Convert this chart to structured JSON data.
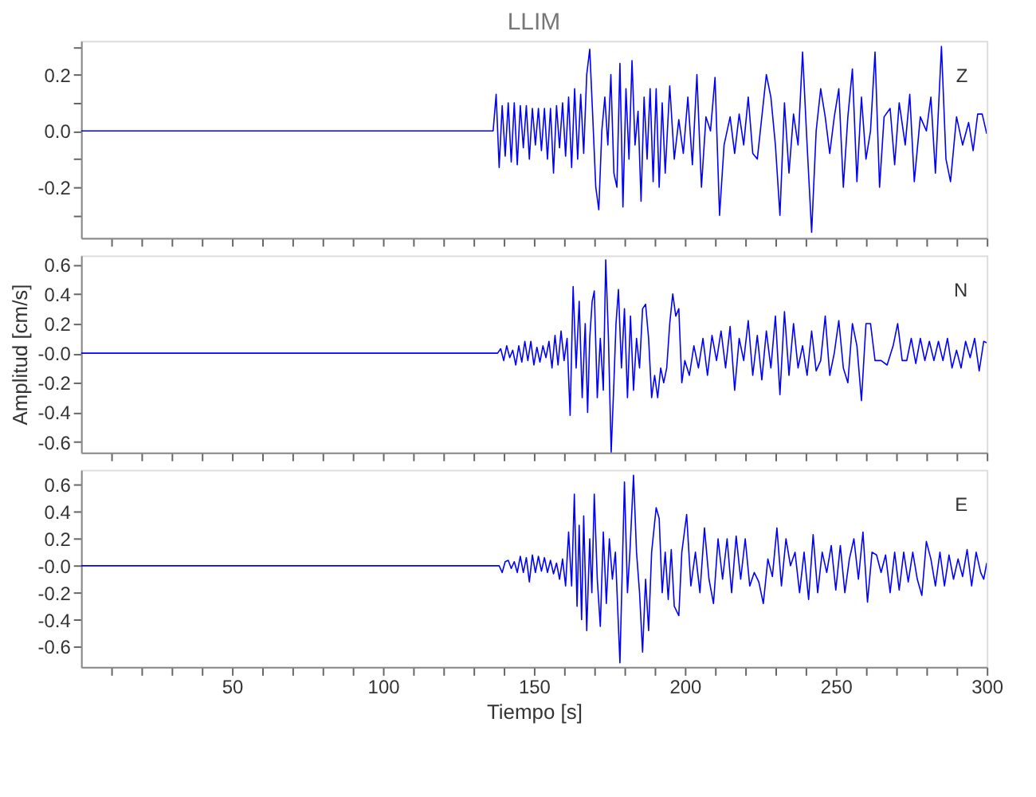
{
  "chart_data": [
    {
      "type": "line",
      "title": "LLIM",
      "annotations": [
        "Z"
      ],
      "color": "#0000ff",
      "tick_labels": "y",
      "grid": false,
      "xlim": [
        0,
        300
      ],
      "xticks": [
        {
          "value": 10,
          "label": null
        },
        {
          "value": 20,
          "label": null
        },
        {
          "value": 30,
          "label": null
        },
        {
          "value": 40,
          "label": null
        },
        50,
        {
          "value": 60,
          "label": null
        },
        {
          "value": 70,
          "label": null
        },
        {
          "value": 80,
          "label": null
        },
        {
          "value": 90,
          "label": null
        },
        100,
        {
          "value": 110,
          "label": null
        },
        {
          "value": 120,
          "label": null
        },
        {
          "value": 130,
          "label": null
        },
        {
          "value": 140,
          "label": null
        },
        150,
        {
          "value": 160,
          "label": null
        },
        {
          "value": 170,
          "label": null
        },
        {
          "value": 180,
          "label": null
        },
        {
          "value": 190,
          "label": null
        },
        200,
        {
          "value": 210,
          "label": null
        },
        {
          "value": 220,
          "label": null
        },
        {
          "value": 230,
          "label": null
        },
        {
          "value": 240,
          "label": null
        },
        250,
        {
          "value": 260,
          "label": null
        },
        {
          "value": 270,
          "label": null
        },
        {
          "value": 280,
          "label": null
        },
        {
          "value": 290,
          "label": null
        },
        300
      ],
      "ylim": [
        -0.38,
        0.32
      ],
      "yticks": [
        {
          "value": -0.3,
          "label": null
        },
        -0.2,
        {
          "value": -0.1,
          "label": null
        },
        {
          "value": 0,
          "label": "0.0"
        },
        {
          "value": 0.1,
          "label": null
        },
        0.2,
        {
          "value": 0.3,
          "label": null
        }
      ],
      "x": [
        0,
        60,
        136.5,
        137.5,
        138.5,
        139.5,
        140.5,
        141.5,
        142.5,
        143.5,
        144.5,
        145.5,
        146.5,
        147.5,
        148.5,
        149.5,
        150.5,
        151.5,
        152.5,
        153.5,
        154.5,
        155.5,
        156.5,
        157.5,
        158.5,
        159.5,
        160.5,
        161.5,
        162.5,
        163.5,
        164.5,
        165.5,
        166.5,
        167.5,
        168.5,
        169.5,
        170.5,
        171.5,
        172.5,
        173.5,
        174.5,
        175.5,
        176.5,
        177.5,
        178.5,
        179.5,
        180.5,
        181.5,
        182.5,
        183.5,
        184.5,
        185.5,
        186.5,
        187.5,
        188.5,
        189.5,
        190.5,
        191.5,
        192.5,
        193.5,
        195,
        196.5,
        198,
        199.5,
        201,
        202.5,
        204,
        205.5,
        207,
        208.5,
        210,
        211.5,
        213,
        215,
        216.5,
        218,
        219.5,
        221,
        222.5,
        224,
        225.5,
        227,
        228.5,
        230,
        231.5,
        233,
        234.5,
        236,
        237.5,
        239,
        240.5,
        242,
        243.5,
        245,
        246.5,
        248,
        249.5,
        251,
        252.5,
        254,
        255.5,
        257,
        258.5,
        260,
        261.5,
        263,
        264.5,
        266,
        268,
        269.5,
        271,
        273,
        274.5,
        276,
        278,
        280,
        281.5,
        283,
        285,
        286.5,
        288,
        290,
        292,
        294,
        295.5,
        297,
        298.5,
        300
      ],
      "values": [
        0,
        0,
        0,
        0.13,
        -0.13,
        0.09,
        -0.09,
        0.1,
        -0.11,
        0.1,
        -0.12,
        0.09,
        -0.06,
        0.09,
        -0.1,
        0.08,
        -0.05,
        0.08,
        -0.07,
        0.08,
        -0.1,
        0.08,
        -0.15,
        0.09,
        -0.06,
        0.1,
        -0.09,
        0.12,
        -0.13,
        0.15,
        -0.1,
        0.13,
        -0.08,
        0.2,
        0.29,
        0.05,
        -0.2,
        -0.28,
        0,
        0.12,
        -0.05,
        0.2,
        -0.15,
        -0.2,
        0.24,
        -0.27,
        0.15,
        -0.1,
        0.25,
        -0.05,
        0.07,
        -0.25,
        0.12,
        -0.1,
        0.15,
        -0.18,
        0.15,
        -0.2,
        0.1,
        -0.15,
        0.16,
        -0.1,
        0.04,
        -0.08,
        0.12,
        -0.12,
        0.2,
        -0.2,
        0.05,
        0,
        0.19,
        -0.3,
        -0.05,
        0.05,
        -0.08,
        0.06,
        -0.05,
        0.12,
        -0.08,
        -0.1,
        0.05,
        0.2,
        0.12,
        -0.05,
        -0.3,
        0.1,
        -0.15,
        0.06,
        -0.05,
        0.28,
        -0.05,
        -0.36,
        0,
        0.15,
        0.05,
        -0.08,
        0.05,
        0.15,
        -0.2,
        0.05,
        0.22,
        -0.18,
        0.12,
        -0.1,
        0,
        0.28,
        -0.2,
        0.05,
        0.08,
        -0.12,
        0.1,
        -0.05,
        0.13,
        -0.18,
        0.05,
        0,
        0.12,
        -0.15,
        0.3,
        -0.1,
        -0.18,
        0.05,
        -0.05,
        0.03,
        -0.07,
        0.06,
        0.06,
        -0.01
      ]
    },
    {
      "type": "line",
      "ylabel": "Amplitud [cm/s]",
      "annotations": [
        "N"
      ],
      "color": "#0000ff",
      "tick_labels": "y",
      "grid": false,
      "xlim": [
        0,
        300
      ],
      "xticks": [
        {
          "value": 10,
          "label": null
        },
        {
          "value": 20,
          "label": null
        },
        {
          "value": 30,
          "label": null
        },
        {
          "value": 40,
          "label": null
        },
        50,
        {
          "value": 60,
          "label": null
        },
        {
          "value": 70,
          "label": null
        },
        {
          "value": 80,
          "label": null
        },
        {
          "value": 90,
          "label": null
        },
        100,
        {
          "value": 110,
          "label": null
        },
        {
          "value": 120,
          "label": null
        },
        {
          "value": 130,
          "label": null
        },
        {
          "value": 140,
          "label": null
        },
        150,
        {
          "value": 160,
          "label": null
        },
        {
          "value": 170,
          "label": null
        },
        {
          "value": 180,
          "label": null
        },
        {
          "value": 190,
          "label": null
        },
        200,
        {
          "value": 210,
          "label": null
        },
        {
          "value": 220,
          "label": null
        },
        {
          "value": 230,
          "label": null
        },
        {
          "value": 240,
          "label": null
        },
        250,
        {
          "value": 260,
          "label": null
        },
        {
          "value": 270,
          "label": null
        },
        {
          "value": 280,
          "label": null
        },
        {
          "value": 290,
          "label": null
        },
        300
      ],
      "ylim": [
        -0.67,
        0.66
      ],
      "yticks": [
        -0.6,
        -0.4,
        -0.2,
        {
          "value": 0,
          "label": "-0.0"
        },
        0.2,
        0.4,
        0.6
      ],
      "x": [
        0,
        60,
        138,
        139,
        140,
        141,
        142,
        143,
        144,
        145,
        146,
        147,
        148,
        149,
        150,
        151,
        152,
        153,
        154,
        155,
        156,
        157,
        158,
        159,
        160,
        161,
        162,
        163,
        164,
        165,
        166,
        167,
        167.8,
        168.5,
        169.3,
        170,
        171,
        172,
        173,
        173.8,
        174.7,
        175.6,
        176.5,
        177.2,
        178,
        179,
        180,
        181,
        182,
        183,
        184,
        185,
        186,
        187,
        188,
        189,
        190,
        191,
        192,
        193,
        194,
        195,
        196,
        197,
        198,
        199,
        200,
        201.5,
        203,
        204.5,
        206,
        207.5,
        209,
        210.5,
        212,
        213.5,
        215,
        216.5,
        218,
        219.5,
        221,
        222.5,
        224,
        225.5,
        227,
        228.5,
        230,
        231.5,
        233,
        234.5,
        236,
        237.5,
        239,
        240.5,
        242,
        243.5,
        245,
        246.5,
        248,
        249.5,
        251,
        252.5,
        254,
        255.5,
        257,
        258.5,
        260,
        261.5,
        263,
        265,
        267,
        269,
        270.5,
        272,
        273.5,
        275,
        276.5,
        278,
        279.5,
        281,
        282.5,
        284,
        285.5,
        287,
        288.5,
        290,
        291.5,
        293,
        294.5,
        296,
        297.5,
        299,
        300
      ],
      "values": [
        0,
        0,
        0,
        0.03,
        -0.05,
        0.05,
        -0.03,
        0.02,
        -0.08,
        0.05,
        -0.06,
        0.08,
        -0.05,
        0.08,
        -0.08,
        0.04,
        -0.06,
        0.05,
        -0.03,
        0.08,
        -0.1,
        0.12,
        -0.08,
        0.15,
        -0.05,
        0.1,
        -0.42,
        0.45,
        -0.1,
        0.35,
        -0.3,
        0.2,
        -0.4,
        0.1,
        0.35,
        0.42,
        -0.3,
        0.1,
        -0.25,
        0.63,
        0.1,
        -0.67,
        -0.2,
        0.2,
        0.43,
        -0.1,
        0.3,
        -0.3,
        0.25,
        -0.25,
        0.1,
        -0.1,
        0.3,
        0.33,
        0.1,
        -0.3,
        -0.15,
        -0.3,
        -0.1,
        -0.2,
        -0.1,
        0.2,
        0.4,
        0.25,
        0.3,
        -0.2,
        -0.05,
        -0.15,
        0.05,
        -0.1,
        0.1,
        -0.15,
        0.12,
        -0.05,
        0.15,
        -0.1,
        0.18,
        -0.25,
        0.1,
        -0.05,
        0.22,
        -0.15,
        0.12,
        -0.18,
        0.15,
        -0.1,
        0.25,
        -0.28,
        0.28,
        -0.15,
        0.2,
        -0.1,
        0.05,
        -0.15,
        0.15,
        -0.12,
        -0.05,
        0.25,
        -0.15,
        0,
        0.22,
        -0.1,
        -0.2,
        0.2,
        0.05,
        -0.32,
        0.2,
        0.2,
        -0.05,
        -0.05,
        -0.08,
        0.05,
        0.2,
        -0.05,
        -0.05,
        0.1,
        -0.07,
        0.1,
        -0.05,
        0.08,
        -0.05,
        0.08,
        -0.05,
        0.1,
        -0.1,
        0.02,
        -0.1,
        0.08,
        -0.03,
        0.1,
        -0.12,
        0.08,
        0.07
      ]
    },
    {
      "type": "line",
      "xlabel": "Tiempo [s]",
      "annotations": [
        "E"
      ],
      "color": "#0000ff",
      "grid": false,
      "xlim": [
        0,
        300
      ],
      "xticks": [
        {
          "value": 10,
          "label": null
        },
        {
          "value": 20,
          "label": null
        },
        {
          "value": 30,
          "label": null
        },
        {
          "value": 40,
          "label": null
        },
        50,
        {
          "value": 60,
          "label": null
        },
        {
          "value": 70,
          "label": null
        },
        {
          "value": 80,
          "label": null
        },
        {
          "value": 90,
          "label": null
        },
        100,
        {
          "value": 110,
          "label": null
        },
        {
          "value": 120,
          "label": null
        },
        {
          "value": 130,
          "label": null
        },
        {
          "value": 140,
          "label": null
        },
        150,
        {
          "value": 160,
          "label": null
        },
        {
          "value": 170,
          "label": null
        },
        {
          "value": 180,
          "label": null
        },
        {
          "value": 190,
          "label": null
        },
        200,
        {
          "value": 210,
          "label": null
        },
        {
          "value": 220,
          "label": null
        },
        {
          "value": 230,
          "label": null
        },
        {
          "value": 240,
          "label": null
        },
        250,
        {
          "value": 260,
          "label": null
        },
        {
          "value": 270,
          "label": null
        },
        {
          "value": 280,
          "label": null
        },
        {
          "value": 290,
          "label": null
        },
        300
      ],
      "ylim": [
        -0.75,
        0.71
      ],
      "yticks": [
        -0.6,
        -0.4,
        -0.2,
        {
          "value": 0,
          "label": "-0.0"
        },
        0.2,
        0.4,
        0.6
      ],
      "x": [
        0,
        60,
        138.5,
        139.5,
        140.5,
        141.5,
        142.5,
        143.5,
        144.5,
        145.5,
        146.5,
        147.5,
        148.5,
        149.5,
        150.5,
        151.5,
        152.5,
        153.5,
        154.5,
        155.5,
        156.5,
        157.5,
        158.5,
        159.5,
        160.5,
        161.5,
        162.5,
        163.4,
        164.3,
        165,
        165.8,
        166.5,
        167.5,
        168.5,
        169.2,
        170,
        171,
        172,
        173,
        174,
        175,
        176,
        177,
        178.5,
        180,
        181,
        181.8,
        183,
        184,
        185,
        186,
        187,
        188,
        189,
        190.5,
        191.5,
        192.5,
        193.5,
        194.5,
        195.5,
        196.5,
        198,
        199,
        200.6,
        202,
        203.5,
        205,
        206.5,
        208,
        209.5,
        211,
        212.5,
        214,
        215.5,
        217,
        218.5,
        220,
        221.5,
        223,
        224.5,
        226,
        227.5,
        229,
        230.5,
        232,
        233.5,
        235,
        236.5,
        238,
        239.5,
        241,
        242.5,
        244,
        245.5,
        247,
        248.5,
        250,
        251.5,
        253,
        254.5,
        256,
        257.5,
        259,
        260.5,
        262,
        263.5,
        265,
        266.5,
        268,
        269.5,
        271,
        272.5,
        274,
        275.5,
        277,
        278.5,
        280,
        281.5,
        283,
        284.5,
        286,
        287.5,
        289,
        290.5,
        292,
        293.5,
        295,
        296.5,
        298,
        299,
        300
      ],
      "values": [
        0,
        0,
        0,
        -0.05,
        0.03,
        0.04,
        -0.02,
        0.03,
        -0.05,
        0.07,
        -0.05,
        0.06,
        -0.12,
        0.08,
        -0.05,
        0.07,
        -0.04,
        0.06,
        -0.05,
        0.04,
        -0.06,
        0.02,
        -0.1,
        0.05,
        -0.15,
        0.25,
        -0.15,
        0.53,
        -0.3,
        0.3,
        -0.4,
        0.37,
        -0.48,
        0.2,
        -0.2,
        0.53,
        -0.1,
        -0.45,
        0.25,
        -0.28,
        0.2,
        -0.1,
        0.1,
        -0.72,
        0.62,
        -0.2,
        0.1,
        0.67,
        0.1,
        -0.2,
        -0.64,
        -0.1,
        -0.48,
        0.1,
        0.43,
        0.35,
        -0.2,
        0.1,
        -0.25,
        0.12,
        -0.3,
        -0.37,
        0.1,
        0.38,
        -0.15,
        0.1,
        -0.2,
        0.28,
        -0.1,
        -0.28,
        0.2,
        -0.1,
        0.2,
        -0.2,
        0.22,
        -0.1,
        0.2,
        -0.15,
        -0.05,
        -0.12,
        -0.28,
        0.05,
        -0.08,
        0.28,
        -0.15,
        0.2,
        0,
        0.1,
        -0.2,
        0.1,
        -0.25,
        0.23,
        -0.2,
        0.1,
        -0.05,
        0.15,
        -0.18,
        0.15,
        -0.2,
        0.05,
        0.2,
        -0.1,
        0.25,
        -0.27,
        0.1,
        0.08,
        -0.05,
        0.08,
        -0.2,
        0.1,
        -0.18,
        0.1,
        -0.12,
        0.1,
        -0.1,
        -0.22,
        0.18,
        0.05,
        -0.15,
        0.1,
        -0.15,
        0.08,
        -0.1,
        0.05,
        -0.08,
        0.12,
        -0.15,
        0.1,
        -0.05,
        -0.1,
        0.02
      ]
    }
  ]
}
